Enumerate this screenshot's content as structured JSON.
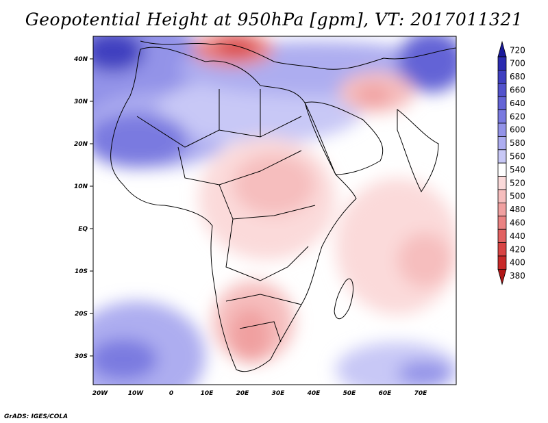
{
  "title": "Geopotential Height at 950hPa [gpm], VT: 2017011321",
  "credit": "GrADS: IGES/COLA",
  "map": {
    "lat_labels": [
      "40N",
      "30N",
      "20N",
      "10N",
      "EQ",
      "10S",
      "20S",
      "30S"
    ],
    "lon_labels": [
      "20W",
      "10W",
      "0",
      "10E",
      "20E",
      "30E",
      "40E",
      "50E",
      "60E",
      "70E"
    ]
  },
  "colorbar": {
    "levels": [
      "720",
      "700",
      "680",
      "660",
      "640",
      "620",
      "600",
      "580",
      "560",
      "540",
      "520",
      "500",
      "480",
      "460",
      "440",
      "420",
      "400",
      "380"
    ],
    "colors": [
      "#1a1a9a",
      "#2b2bb0",
      "#3f3fc0",
      "#5252cc",
      "#6464d6",
      "#7a7ae0",
      "#9393e8",
      "#adadf0",
      "#c8c8f6",
      "#ffffff",
      "#fbdada",
      "#f6bebe",
      "#f0a0a0",
      "#ea8282",
      "#e26262",
      "#d84444",
      "#c82a2a",
      "#b01818"
    ]
  }
}
